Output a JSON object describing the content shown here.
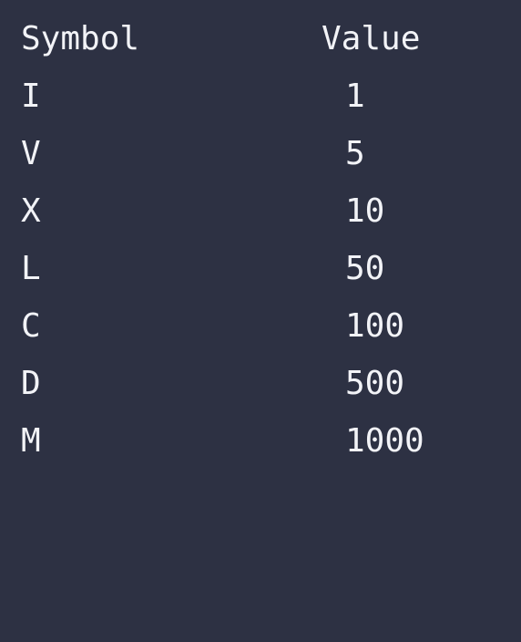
{
  "table": {
    "header": {
      "symbol": "Symbol",
      "value": "Value"
    },
    "rows": [
      {
        "symbol": "I",
        "value": "1"
      },
      {
        "symbol": "V",
        "value": "5"
      },
      {
        "symbol": "X",
        "value": "10"
      },
      {
        "symbol": "L",
        "value": "50"
      },
      {
        "symbol": "C",
        "value": "100"
      },
      {
        "symbol": "D",
        "value": "500"
      },
      {
        "symbol": "M",
        "value": "1000"
      }
    ]
  },
  "colors": {
    "background": "#2d3143",
    "text": "#f2f3f7"
  }
}
